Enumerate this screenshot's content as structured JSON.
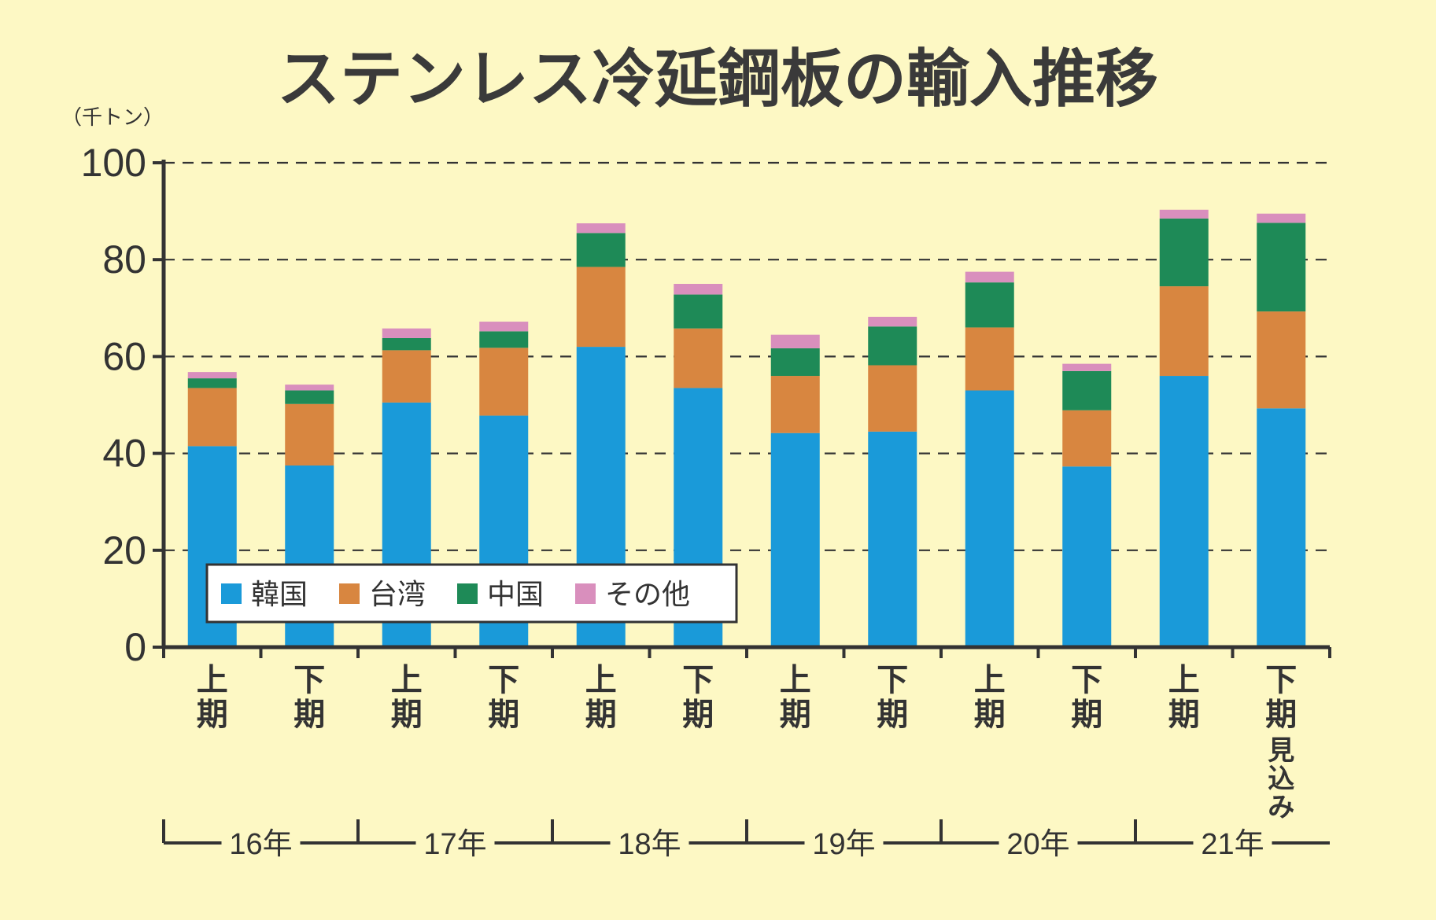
{
  "chart_data": {
    "type": "bar",
    "stacked": true,
    "title": "ステンレス冷延鋼板の輸入推移",
    "unit": "（千トン）",
    "ylim": [
      0,
      100
    ],
    "yticks": [
      "0",
      "20",
      "40",
      "60",
      "80",
      "100"
    ],
    "grid": true,
    "legend_position": "bottom-left",
    "categories": [
      "上期",
      "下期",
      "上期",
      "下期",
      "上期",
      "下期",
      "上期",
      "下期",
      "上期",
      "下期",
      "上期",
      "下期見込み"
    ],
    "years": [
      "16年",
      "17年",
      "18年",
      "19年",
      "20年",
      "21年"
    ],
    "series": [
      {
        "name": "韓国",
        "color": "#1a9ad9",
        "values": [
          41.5,
          37.5,
          50.5,
          47.8,
          62.0,
          53.5,
          44.2,
          44.5,
          53.0,
          37.3,
          56.0,
          49.3
        ]
      },
      {
        "name": "台湾",
        "color": "#d88640",
        "values": [
          12.0,
          12.7,
          10.8,
          14.0,
          16.5,
          12.3,
          11.8,
          13.7,
          13.0,
          11.6,
          18.5,
          20.0
        ]
      },
      {
        "name": "中国",
        "color": "#1e8a57",
        "values": [
          2.0,
          2.8,
          2.5,
          3.4,
          7.0,
          7.0,
          5.7,
          8.0,
          9.3,
          8.1,
          14.0,
          18.3
        ]
      },
      {
        "name": "その他",
        "color": "#d98fbd",
        "values": [
          1.3,
          1.2,
          2.0,
          2.0,
          2.0,
          2.2,
          2.8,
          2.0,
          2.2,
          1.5,
          1.8,
          1.9
        ]
      }
    ]
  }
}
